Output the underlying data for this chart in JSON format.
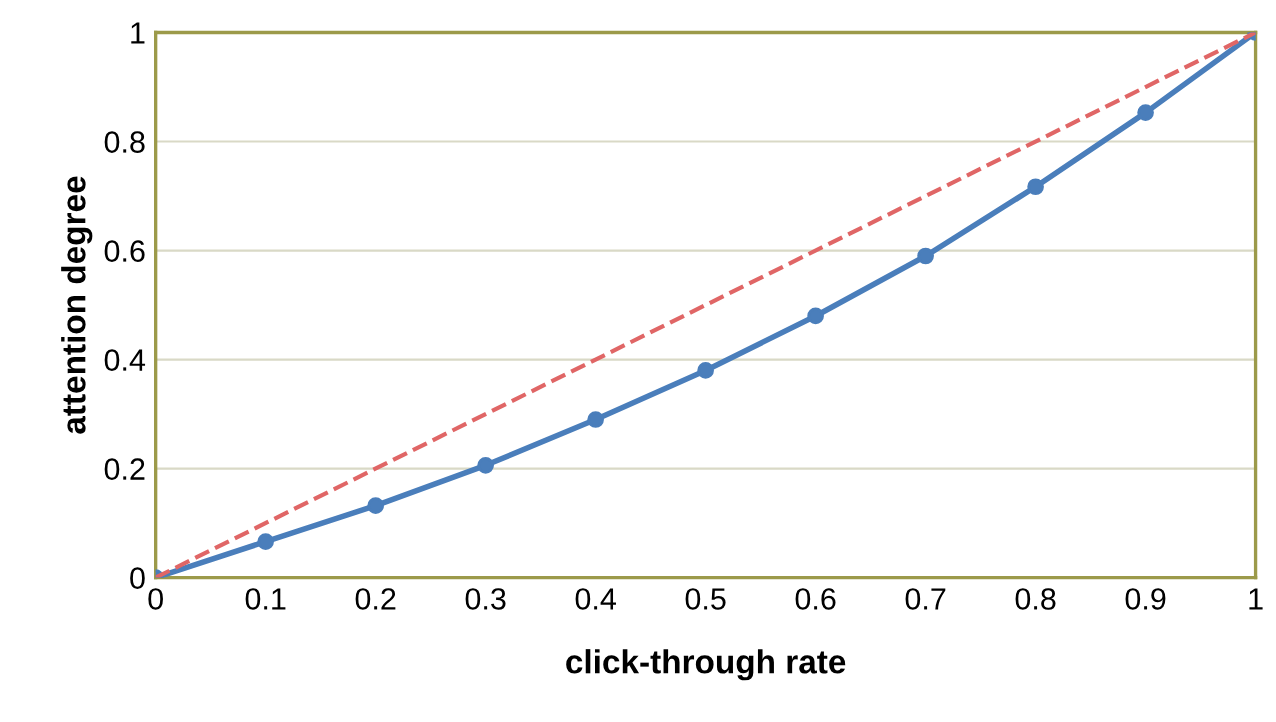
{
  "chart_data": {
    "type": "line",
    "xlabel": "click-through rate",
    "ylabel": "attention degree",
    "xlim": [
      0,
      1
    ],
    "ylim": [
      0,
      1
    ],
    "xticks": [
      0,
      0.1,
      0.2,
      0.3,
      0.4,
      0.5,
      0.6,
      0.7,
      0.8,
      0.9,
      1
    ],
    "yticks": [
      0,
      0.2,
      0.4,
      0.6,
      0.8,
      1
    ],
    "grid": "y",
    "legend": false,
    "series": [
      {
        "x": [
          0,
          0.1,
          0.2,
          0.3,
          0.4,
          0.5,
          0.6,
          0.7,
          0.8,
          0.9,
          1
        ],
        "values": [
          0,
          0.066,
          0.132,
          0.206,
          0.29,
          0.38,
          0.48,
          0.59,
          0.717,
          0.853,
          1
        ],
        "color": "#4a7ebb",
        "marker": "circle",
        "line_style": "solid"
      },
      {
        "x": [
          0,
          1
        ],
        "values": [
          0,
          1
        ],
        "color": "#e06666",
        "marker": "none",
        "line_style": "dashed"
      }
    ]
  }
}
